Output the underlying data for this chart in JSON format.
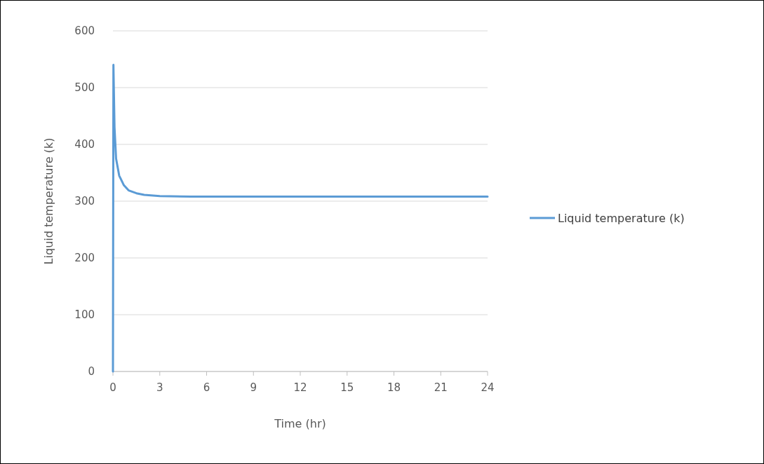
{
  "chart_data": {
    "type": "line",
    "xlabel": "Time (hr)",
    "ylabel": "Liquid temperature  (k)",
    "xlim": [
      0,
      24
    ],
    "xticks": [
      0,
      3,
      6,
      9,
      12,
      15,
      18,
      21,
      24
    ],
    "ylim": [
      0,
      600
    ],
    "yticks": [
      0,
      100,
      200,
      300,
      400,
      500,
      600
    ],
    "grid": "y",
    "legend": "right",
    "marker": "none",
    "line_style": "solid",
    "series": [
      {
        "name": "Liquid temperature (k)",
        "color": "#5b9bd5",
        "x": [
          0,
          0.03,
          0.1,
          0.2,
          0.4,
          0.7,
          1,
          1.5,
          2,
          3,
          5,
          12,
          24
        ],
        "values": [
          0,
          540,
          430,
          375,
          345,
          328,
          319,
          314,
          311,
          309,
          308,
          308,
          308
        ]
      }
    ]
  }
}
